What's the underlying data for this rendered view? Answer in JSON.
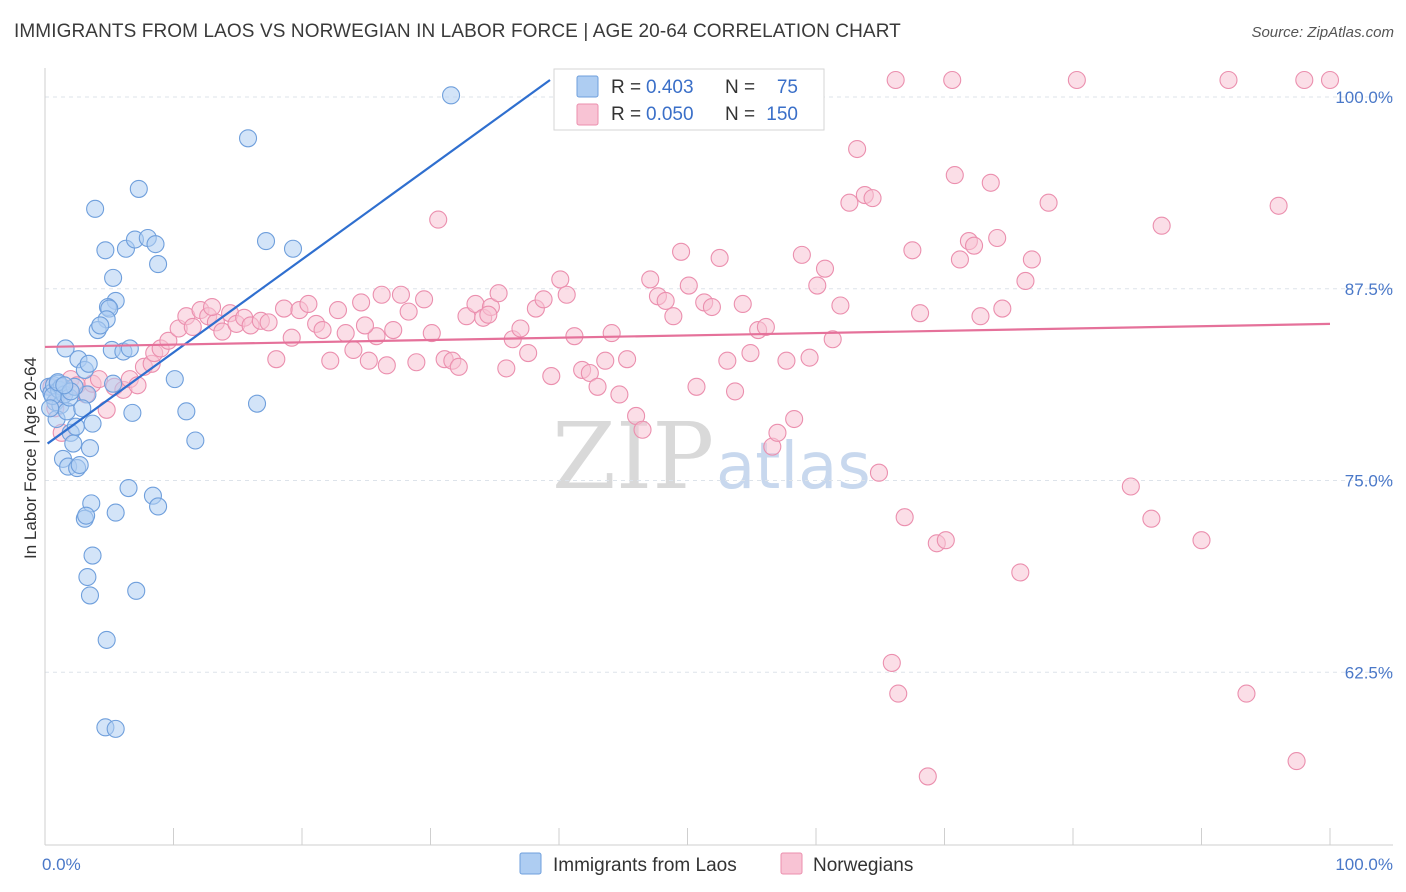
{
  "title": "IMMIGRANTS FROM LAOS VS NORWEGIAN IN LABOR FORCE | AGE 20-64 CORRELATION CHART",
  "source": "Source: ZipAtlas.com",
  "watermark": {
    "zip": "ZIP",
    "atlas": "atlas"
  },
  "colors": {
    "blue_fill": "#aecdf2",
    "blue_stroke": "#6f9fdc",
    "blue_line": "#2f6fcf",
    "pink_fill": "#f8c3d4",
    "pink_stroke": "#eb8fae",
    "pink_line": "#e5719a",
    "tick_text": "#4a78c8",
    "grid": "#dde3ea"
  },
  "legend": {
    "r_label": "R =",
    "n_label": "N =",
    "rows": [
      {
        "r": "0.403",
        "n": "75",
        "series": "blue"
      },
      {
        "r": "0.050",
        "n": "150",
        "series": "pink"
      }
    ]
  },
  "bottom_legend": [
    {
      "label": "Immigrants from Laos",
      "series": "blue"
    },
    {
      "label": "Norwegians",
      "series": "pink"
    }
  ],
  "chart_data": {
    "type": "scatter",
    "title": "IMMIGRANTS FROM LAOS VS NORWEGIAN IN LABOR FORCE | AGE 20-64 CORRELATION CHART",
    "xlabel": "",
    "ylabel": "In Labor Force | Age 20-64",
    "xlim": [
      0,
      100
    ],
    "ylim": [
      50,
      100
    ],
    "x_tick_labels": [
      "0.0%",
      "100.0%"
    ],
    "y_ticks": [
      {
        "value": 100,
        "label": "100.0%"
      },
      {
        "value": 87.5,
        "label": "87.5%"
      },
      {
        "value": 75,
        "label": "75.0%"
      },
      {
        "value": 62.5,
        "label": "62.5%"
      }
    ],
    "series": [
      {
        "name": "Immigrants from Laos",
        "color": "#aecdf2",
        "r": 0.403,
        "n": 75,
        "trend": {
          "x0": 0.2,
          "y0": 76.3,
          "x1": 39.3,
          "y1": 100.0
        },
        "points": [
          [
            0.3,
            80.0
          ],
          [
            0.5,
            79.6
          ],
          [
            0.7,
            80.1
          ],
          [
            0.8,
            79.0
          ],
          [
            1.0,
            80.2
          ],
          [
            1.1,
            79.8
          ],
          [
            1.2,
            78.8
          ],
          [
            1.3,
            80.0
          ],
          [
            0.9,
            77.9
          ],
          [
            1.5,
            79.5
          ],
          [
            1.7,
            78.4
          ],
          [
            1.4,
            75.3
          ],
          [
            1.8,
            74.8
          ],
          [
            2.0,
            77.0
          ],
          [
            2.2,
            76.3
          ],
          [
            2.5,
            74.7
          ],
          [
            1.6,
            82.5
          ],
          [
            2.6,
            81.8
          ],
          [
            3.1,
            81.1
          ],
          [
            3.4,
            81.5
          ],
          [
            3.3,
            79.5
          ],
          [
            2.9,
            78.6
          ],
          [
            3.7,
            77.6
          ],
          [
            2.4,
            77.4
          ],
          [
            3.5,
            76.0
          ],
          [
            2.7,
            74.9
          ],
          [
            3.6,
            72.4
          ],
          [
            3.1,
            71.4
          ],
          [
            3.2,
            71.6
          ],
          [
            3.7,
            69.0
          ],
          [
            3.3,
            67.6
          ],
          [
            3.5,
            66.4
          ],
          [
            4.8,
            63.5
          ],
          [
            4.7,
            57.8
          ],
          [
            5.5,
            57.7
          ],
          [
            5.5,
            71.8
          ],
          [
            6.5,
            73.4
          ],
          [
            7.1,
            66.7
          ],
          [
            8.4,
            72.9
          ],
          [
            8.8,
            72.2
          ],
          [
            3.9,
            91.6
          ],
          [
            4.7,
            88.9
          ],
          [
            5.3,
            87.1
          ],
          [
            5.5,
            85.6
          ],
          [
            4.9,
            85.2
          ],
          [
            5.0,
            85.1
          ],
          [
            4.8,
            84.4
          ],
          [
            4.1,
            83.7
          ],
          [
            4.3,
            84.0
          ],
          [
            5.2,
            82.4
          ],
          [
            6.1,
            82.3
          ],
          [
            6.6,
            82.5
          ],
          [
            6.3,
            89.0
          ],
          [
            7.0,
            89.6
          ],
          [
            8.0,
            89.7
          ],
          [
            8.6,
            89.3
          ],
          [
            8.8,
            88.0
          ],
          [
            7.3,
            92.9
          ],
          [
            10.1,
            80.5
          ],
          [
            11.0,
            78.4
          ],
          [
            11.7,
            76.5
          ],
          [
            6.8,
            78.3
          ],
          [
            5.3,
            80.2
          ],
          [
            16.5,
            78.9
          ],
          [
            15.8,
            96.2
          ],
          [
            17.2,
            89.5
          ],
          [
            19.3,
            89.0
          ],
          [
            31.6,
            99.0
          ],
          [
            0.6,
            79.4
          ],
          [
            1.0,
            80.3
          ],
          [
            1.9,
            79.3
          ],
          [
            2.3,
            80.0
          ],
          [
            0.4,
            78.6
          ],
          [
            2.0,
            79.7
          ],
          [
            1.5,
            80.1
          ]
        ]
      },
      {
        "name": "Norwegians",
        "color": "#f8c3d4",
        "r": 0.05,
        "n": 150,
        "trend": {
          "x0": 0.0,
          "y0": 82.6,
          "x1": 100.0,
          "y1": 84.1
        },
        "points": [
          [
            0.5,
            80.0
          ],
          [
            1.0,
            79.5
          ],
          [
            1.5,
            79.8
          ],
          [
            2.0,
            80.5
          ],
          [
            2.5,
            80.1
          ],
          [
            0.8,
            78.6
          ],
          [
            1.3,
            77.0
          ],
          [
            3.2,
            79.5
          ],
          [
            3.7,
            80.2
          ],
          [
            4.2,
            80.5
          ],
          [
            4.8,
            78.5
          ],
          [
            5.4,
            80.0
          ],
          [
            6.1,
            79.8
          ],
          [
            6.6,
            80.5
          ],
          [
            7.2,
            80.1
          ],
          [
            7.7,
            81.3
          ],
          [
            8.3,
            81.5
          ],
          [
            8.5,
            82.2
          ],
          [
            9.0,
            82.5
          ],
          [
            9.6,
            83.0
          ],
          [
            10.4,
            83.8
          ],
          [
            11.0,
            84.6
          ],
          [
            12.1,
            85.0
          ],
          [
            12.7,
            84.6
          ],
          [
            13.3,
            84.2
          ],
          [
            13.8,
            83.6
          ],
          [
            14.4,
            84.8
          ],
          [
            14.9,
            84.1
          ],
          [
            15.5,
            84.5
          ],
          [
            16.0,
            84.0
          ],
          [
            16.8,
            84.3
          ],
          [
            17.4,
            84.2
          ],
          [
            18.0,
            81.8
          ],
          [
            18.6,
            85.1
          ],
          [
            19.2,
            83.2
          ],
          [
            19.8,
            85.0
          ],
          [
            20.5,
            85.4
          ],
          [
            21.1,
            84.1
          ],
          [
            21.6,
            83.7
          ],
          [
            22.2,
            81.7
          ],
          [
            22.8,
            85.0
          ],
          [
            23.4,
            83.5
          ],
          [
            24.0,
            82.4
          ],
          [
            24.6,
            85.5
          ],
          [
            25.2,
            81.7
          ],
          [
            25.8,
            83.3
          ],
          [
            26.2,
            86.0
          ],
          [
            26.6,
            81.4
          ],
          [
            27.1,
            83.7
          ],
          [
            27.7,
            86.0
          ],
          [
            28.3,
            84.9
          ],
          [
            28.9,
            81.6
          ],
          [
            29.5,
            85.7
          ],
          [
            30.1,
            83.5
          ],
          [
            30.6,
            90.9
          ],
          [
            31.1,
            81.8
          ],
          [
            31.7,
            81.7
          ],
          [
            32.2,
            81.3
          ],
          [
            32.8,
            84.6
          ],
          [
            33.5,
            85.4
          ],
          [
            34.1,
            84.5
          ],
          [
            34.7,
            85.2
          ],
          [
            35.3,
            86.1
          ],
          [
            35.9,
            81.2
          ],
          [
            36.4,
            83.1
          ],
          [
            37.0,
            83.8
          ],
          [
            37.6,
            82.2
          ],
          [
            38.2,
            85.1
          ],
          [
            38.8,
            85.7
          ],
          [
            39.4,
            80.7
          ],
          [
            40.1,
            87.0
          ],
          [
            40.6,
            86.0
          ],
          [
            41.2,
            83.3
          ],
          [
            41.8,
            81.1
          ],
          [
            42.4,
            80.9
          ],
          [
            43.0,
            80.0
          ],
          [
            43.6,
            81.7
          ],
          [
            44.1,
            83.5
          ],
          [
            44.7,
            79.5
          ],
          [
            45.3,
            81.8
          ],
          [
            46.0,
            78.1
          ],
          [
            46.5,
            77.2
          ],
          [
            47.1,
            87.0
          ],
          [
            47.7,
            85.9
          ],
          [
            48.3,
            85.6
          ],
          [
            48.9,
            84.6
          ],
          [
            49.5,
            88.8
          ],
          [
            50.1,
            86.6
          ],
          [
            50.7,
            80.0
          ],
          [
            51.3,
            85.5
          ],
          [
            51.9,
            85.2
          ],
          [
            52.5,
            88.4
          ],
          [
            53.1,
            81.7
          ],
          [
            53.7,
            79.7
          ],
          [
            54.3,
            85.4
          ],
          [
            54.9,
            82.2
          ],
          [
            55.5,
            83.7
          ],
          [
            56.1,
            83.9
          ],
          [
            56.6,
            76.1
          ],
          [
            57.0,
            77.0
          ],
          [
            57.7,
            81.7
          ],
          [
            58.3,
            77.9
          ],
          [
            58.9,
            88.6
          ],
          [
            59.5,
            81.9
          ],
          [
            60.1,
            86.6
          ],
          [
            60.7,
            87.7
          ],
          [
            61.3,
            83.1
          ],
          [
            61.9,
            85.3
          ],
          [
            62.6,
            92.0
          ],
          [
            63.2,
            95.5
          ],
          [
            63.8,
            92.5
          ],
          [
            64.4,
            92.3
          ],
          [
            64.9,
            74.4
          ],
          [
            65.9,
            62.0
          ],
          [
            66.4,
            60.0
          ],
          [
            66.9,
            71.5
          ],
          [
            67.5,
            88.9
          ],
          [
            68.1,
            84.8
          ],
          [
            68.7,
            54.6
          ],
          [
            69.4,
            69.8
          ],
          [
            70.1,
            70.0
          ],
          [
            70.8,
            93.8
          ],
          [
            71.2,
            88.3
          ],
          [
            71.9,
            89.5
          ],
          [
            72.3,
            89.2
          ],
          [
            72.8,
            84.6
          ],
          [
            73.6,
            93.3
          ],
          [
            74.1,
            89.7
          ],
          [
            74.5,
            85.1
          ],
          [
            75.9,
            67.9
          ],
          [
            76.3,
            86.9
          ],
          [
            76.8,
            88.3
          ],
          [
            78.1,
            92.0
          ],
          [
            80.3,
            100.0
          ],
          [
            84.5,
            73.5
          ],
          [
            86.1,
            71.4
          ],
          [
            86.9,
            90.5
          ],
          [
            90.0,
            70.0
          ],
          [
            92.1,
            100.0
          ],
          [
            93.5,
            60.0
          ],
          [
            96.0,
            91.8
          ],
          [
            97.4,
            55.6
          ],
          [
            98.0,
            100.0
          ],
          [
            100.0,
            100.0
          ],
          [
            66.2,
            100.0
          ],
          [
            70.6,
            100.0
          ],
          [
            11.5,
            83.9
          ],
          [
            13.0,
            85.2
          ],
          [
            24.9,
            84.0
          ],
          [
            34.5,
            84.7
          ]
        ]
      }
    ]
  },
  "y_axis_title": "In Labor Force | Age 20-64"
}
